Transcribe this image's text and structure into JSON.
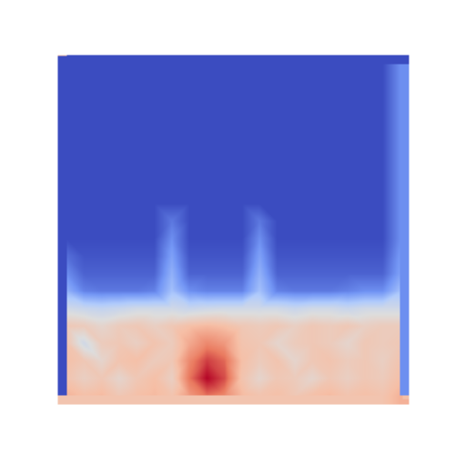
{
  "chart_data": {
    "type": "heatmap",
    "color": "coolwarm",
    "tick_labels": false,
    "cells": [
      [
        0,
        0,
        0,
        0,
        0,
        0,
        0,
        0,
        0,
        0,
        0,
        0,
        0,
        0,
        0,
        0,
        0,
        0,
        0,
        0.15
      ],
      [
        0,
        0,
        0,
        0,
        0,
        0,
        0,
        0,
        0,
        0,
        0,
        0,
        0,
        0,
        0,
        0,
        0,
        0,
        0,
        0.15
      ],
      [
        0,
        0,
        0,
        0,
        0,
        0,
        0,
        0,
        0,
        0,
        0,
        0,
        0,
        0,
        0,
        0,
        0,
        0,
        0,
        0.15
      ],
      [
        0,
        0,
        0,
        0,
        0,
        0,
        0,
        0,
        0,
        0,
        0,
        0,
        0,
        0,
        0,
        0,
        0,
        0,
        0,
        0.15
      ],
      [
        0,
        0,
        0,
        0,
        0,
        0,
        0,
        0,
        0,
        0,
        0,
        0,
        0,
        0,
        0,
        0,
        0,
        0,
        0,
        0.15
      ],
      [
        0,
        0,
        0,
        0,
        0,
        0,
        0,
        0,
        0,
        0,
        0,
        0,
        0,
        0,
        0,
        0,
        0,
        0,
        0,
        0.15
      ],
      [
        0,
        0,
        0,
        0,
        0,
        0,
        0,
        0,
        0,
        0,
        0,
        0,
        0,
        0,
        0,
        0,
        0,
        0,
        0,
        0.15
      ],
      [
        0,
        0,
        0,
        0,
        0,
        0,
        0,
        0,
        0,
        0,
        0,
        0,
        0,
        0,
        0,
        0,
        0,
        0,
        0,
        0.15
      ],
      [
        0,
        0,
        0,
        0,
        0,
        0,
        0,
        0,
        0,
        0,
        0,
        0,
        0,
        0,
        0,
        0,
        0,
        0,
        0,
        0.15
      ],
      [
        0,
        0,
        0,
        0,
        0,
        0,
        0.1,
        0,
        0,
        0,
        0,
        0.1,
        0,
        0,
        0,
        0,
        0,
        0,
        0,
        0.15
      ],
      [
        0,
        0,
        0,
        0,
        0,
        0,
        0.15,
        0,
        0,
        0,
        0,
        0.15,
        0,
        0,
        0,
        0,
        0,
        0,
        0,
        0.15
      ],
      [
        0.08,
        0.02,
        0.02,
        0.02,
        0.02,
        0.02,
        0.2,
        0.02,
        0.02,
        0.02,
        0.02,
        0.2,
        0.02,
        0.02,
        0.02,
        0.02,
        0.02,
        0.02,
        0.02,
        0.18
      ],
      [
        0.15,
        0.05,
        0.05,
        0.05,
        0.05,
        0.05,
        0.25,
        0.05,
        0.05,
        0.05,
        0.05,
        0.25,
        0.05,
        0.05,
        0.05,
        0.05,
        0.05,
        0.05,
        0.05,
        0.2
      ],
      [
        0.25,
        0.12,
        0.1,
        0.1,
        0.1,
        0.12,
        0.3,
        0.15,
        0.12,
        0.12,
        0.12,
        0.3,
        0.12,
        0.1,
        0.1,
        0.1,
        0.12,
        0.15,
        0.15,
        0.3
      ],
      [
        0.45,
        0.42,
        0.4,
        0.42,
        0.45,
        0.45,
        0.45,
        0.42,
        0.44,
        0.45,
        0.45,
        0.45,
        0.45,
        0.42,
        0.45,
        0.45,
        0.42,
        0.45,
        0.45,
        0.45
      ],
      [
        0.62,
        0.6,
        0.55,
        0.6,
        0.62,
        0.58,
        0.62,
        0.66,
        0.68,
        0.66,
        0.62,
        0.6,
        0.62,
        0.58,
        0.62,
        0.6,
        0.62,
        0.58,
        0.6,
        0.6
      ],
      [
        0.64,
        0.45,
        0.6,
        0.62,
        0.58,
        0.64,
        0.6,
        0.72,
        0.8,
        0.76,
        0.64,
        0.62,
        0.55,
        0.6,
        0.62,
        0.6,
        0.55,
        0.62,
        0.6,
        0.62
      ],
      [
        0.66,
        0.62,
        0.55,
        0.64,
        0.66,
        0.6,
        0.62,
        0.8,
        0.92,
        0.86,
        0.66,
        0.6,
        0.64,
        0.55,
        0.62,
        0.64,
        0.6,
        0.62,
        0.58,
        0.64
      ],
      [
        0.64,
        0.58,
        0.62,
        0.55,
        0.62,
        0.66,
        0.58,
        0.84,
        1.0,
        0.9,
        0.64,
        0.55,
        0.62,
        0.6,
        0.55,
        0.62,
        0.58,
        0.62,
        0.6,
        0.66
      ],
      [
        0.7,
        0.66,
        0.68,
        0.62,
        0.66,
        0.68,
        0.64,
        0.76,
        0.85,
        0.8,
        0.68,
        0.64,
        0.66,
        0.62,
        0.66,
        0.68,
        0.64,
        0.66,
        0.64,
        0.7
      ]
    ]
  }
}
